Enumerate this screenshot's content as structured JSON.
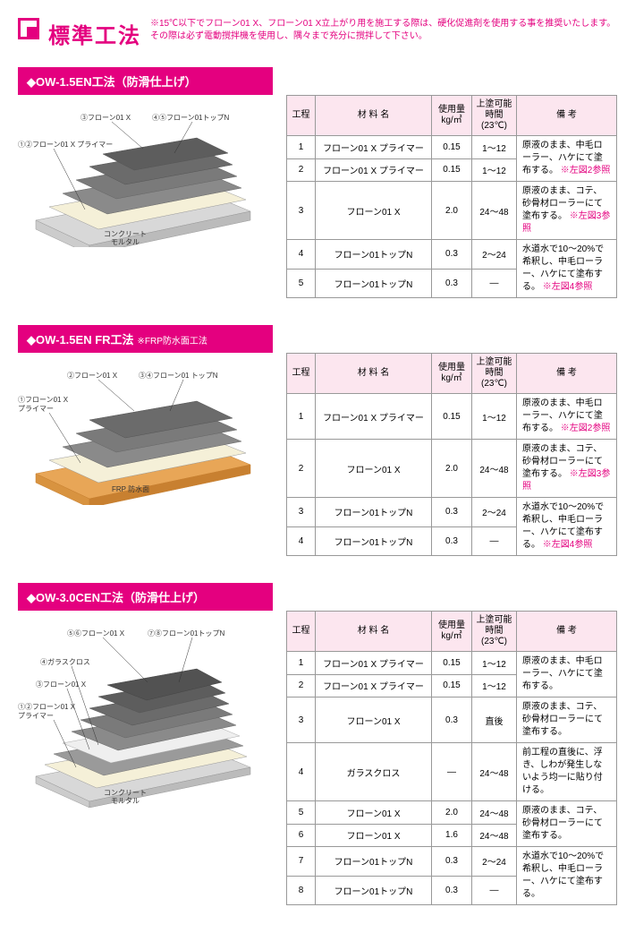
{
  "header": {
    "title": "標準工法",
    "note_line1": "※15℃以下でフローン01 X、フローン01 X立上がり用を施工する際は、硬化促進剤を使用する事を推奨いたします。",
    "note_line2": "その際は必ず電動撹拌機を使用し、隅々まで充分に撹拌して下さい。"
  },
  "cols": {
    "step": "工程",
    "material": "材  料  名",
    "usage": "使用量\nkg/㎡",
    "time": "上塗可能\n時間\n(23℃)",
    "remarks": "備    考"
  },
  "section1": {
    "title": "◆OW-1.5EN工法（防滑仕上げ）",
    "diagram_labels": {
      "l1": "③フローン01 X",
      "l2": "④⑤フローン01トップN",
      "l3": "①②フローン01 X プライマー",
      "l4": "コンクリート\nモルタル"
    },
    "rows": [
      {
        "s": "1",
        "m": "フローン01 X プライマー",
        "u": "0.15",
        "t": "1～12",
        "r": "原液のまま、中毛ローラー、ハケにて塗布する。",
        "r2": "※左図2参照",
        "merge": "top"
      },
      {
        "s": "2",
        "m": "フローン01 X プライマー",
        "u": "0.15",
        "t": "1～12",
        "merge": "bottom"
      },
      {
        "s": "3",
        "m": "フローン01 X",
        "u": "2.0",
        "t": "24～48",
        "r": "原液のまま、コテ、砂骨材ローラーにて塗布する。",
        "r2": "※左図3参照"
      },
      {
        "s": "4",
        "m": "フローン01トップN",
        "u": "0.3",
        "t": "2～24",
        "r": "水道水で10～20%で希釈し、中毛ローラー、ハケにて塗布する。",
        "r2": "※左図4参照",
        "merge": "top"
      },
      {
        "s": "5",
        "m": "フローン01トップN",
        "u": "0.3",
        "t": "—",
        "merge": "bottom"
      }
    ]
  },
  "section2": {
    "title": "◆OW-1.5EN FR工法",
    "subtitle": "※FRP防水面工法",
    "diagram_labels": {
      "l1": "②フローン01 X",
      "l2": "③④フローン01 トップN",
      "l3": "①フローン01 X\nプライマー",
      "l4": "FRP 防水面"
    },
    "rows": [
      {
        "s": "1",
        "m": "フローン01 X プライマー",
        "u": "0.15",
        "t": "1～12",
        "r": "原液のまま、中毛ローラー、ハケにて塗布する。",
        "r2": "※左図2参照"
      },
      {
        "s": "2",
        "m": "フローン01 X",
        "u": "2.0",
        "t": "24～48",
        "r": "原液のまま、コテ、砂骨材ローラーにて塗布する。",
        "r2": "※左図3参照"
      },
      {
        "s": "3",
        "m": "フローン01トップN",
        "u": "0.3",
        "t": "2～24",
        "r": "水道水で10～20%で希釈し、中毛ローラー、ハケにて塗布する。",
        "r2": "※左図4参照",
        "merge": "top"
      },
      {
        "s": "4",
        "m": "フローン01トップN",
        "u": "0.3",
        "t": "—",
        "merge": "bottom"
      }
    ]
  },
  "section3": {
    "title": "◆OW-3.0CEN工法（防滑仕上げ）",
    "diagram_labels": {
      "l1": "⑤⑥フローン01 X",
      "l2": "⑦⑧フローン01トップN",
      "l3": "④ガラスクロス",
      "l4": "③フローン01 X",
      "l5": "①②フローン01 X\nプライマー",
      "l6": "コンクリート\nモルタル"
    },
    "rows": [
      {
        "s": "1",
        "m": "フローン01 X プライマー",
        "u": "0.15",
        "t": "1～12",
        "r": "原液のまま、中毛ローラー、ハケにて塗布する。",
        "merge": "top"
      },
      {
        "s": "2",
        "m": "フローン01 X プライマー",
        "u": "0.15",
        "t": "1～12",
        "merge": "bottom"
      },
      {
        "s": "3",
        "m": "フローン01 X",
        "u": "0.3",
        "t": "直後",
        "r": "原液のまま、コテ、砂骨材ローラーにて塗布する。"
      },
      {
        "s": "4",
        "m": "ガラスクロス",
        "u": "—",
        "t": "24～48",
        "r": "前工程の直後に、浮き、しわが発生しないよう均一に貼り付ける。"
      },
      {
        "s": "5",
        "m": "フローン01 X",
        "u": "2.0",
        "t": "24～48",
        "r": "原液のまま、コテ、砂骨材ローラーにて塗布する。",
        "merge": "top"
      },
      {
        "s": "6",
        "m": "フローン01 X",
        "u": "1.6",
        "t": "24～48",
        "merge": "bottom"
      },
      {
        "s": "7",
        "m": "フローン01トップN",
        "u": "0.3",
        "t": "2～24",
        "r": "水道水で10～20%で希釈し、中毛ローラー、ハケにて塗布する。",
        "merge": "top"
      },
      {
        "s": "8",
        "m": "フローン01トップN",
        "u": "0.3",
        "t": "—",
        "merge": "bottom"
      }
    ]
  },
  "colors": {
    "pink": "#e4007f",
    "header_bg": "#fce6ef",
    "gray_dark": "#6b6b6b",
    "gray_mid": "#9a9a9a",
    "cream": "#f5f0d8",
    "concrete": "#d8d8d8",
    "frp": "#e8a657"
  }
}
